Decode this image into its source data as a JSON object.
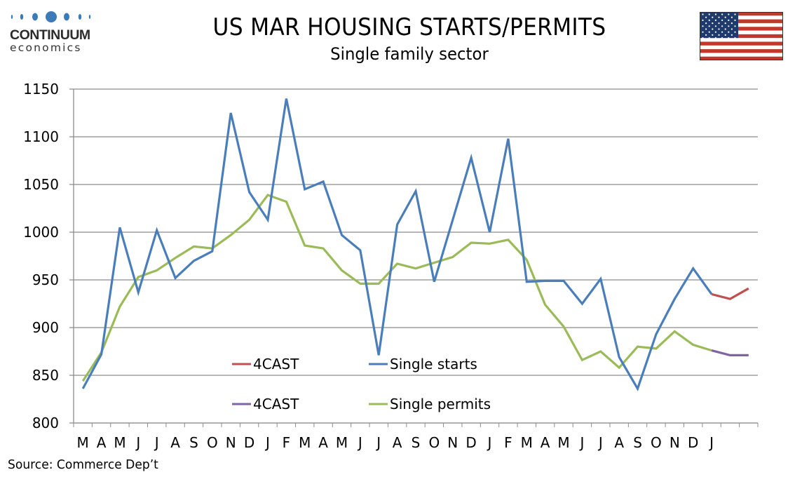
{
  "logo": {
    "name": "CONTINUUM",
    "sub": "economics",
    "color": "#3d7ab8"
  },
  "header": {
    "title": "US MAR HOUSING STARTS/PERMITS",
    "subtitle": "Single family sector"
  },
  "flag": {
    "name": "us-flag",
    "colors": {
      "blue": "#1f3b6e",
      "red": "#c0392b",
      "white": "#ffffff"
    }
  },
  "footer": {
    "source": "Source: Commerce Dep’t"
  },
  "chart_data": {
    "type": "line",
    "title": "US MAR HOUSING STARTS/PERMITS",
    "subtitle": "Single family sector",
    "xlabel": "",
    "ylabel": "",
    "ylim": [
      800,
      1150
    ],
    "yticks": [
      800,
      850,
      900,
      950,
      1000,
      1050,
      1100,
      1150
    ],
    "grid": true,
    "categories": [
      "M",
      "A",
      "M",
      "J",
      "J",
      "A",
      "S",
      "O",
      "N",
      "D",
      "J",
      "F",
      "M",
      "A",
      "M",
      "J",
      "J",
      "A",
      "S",
      "O",
      "N",
      "D",
      "J",
      "F",
      "M",
      "A",
      "M",
      "J",
      "J",
      "A",
      "S",
      "O",
      "N",
      "D",
      "J",
      "",
      ""
    ],
    "legend": {
      "placement": "bottom-center-inside",
      "entries": [
        {
          "label": "4CAST",
          "color": "#c0504d"
        },
        {
          "label": "Single starts",
          "color": "#4a7ebb"
        },
        {
          "label": "4CAST",
          "color": "#8064a2"
        },
        {
          "label": "Single permits",
          "color": "#9bbb59"
        }
      ]
    },
    "series": [
      {
        "name": "Single starts",
        "color": "#4a7ebb",
        "values": [
          836,
          872,
          1005,
          937,
          1002,
          952,
          970,
          980,
          1125,
          1042,
          1013,
          1140,
          1045,
          1053,
          997,
          981,
          871,
          1008,
          1043,
          948,
          1013,
          1078,
          1000,
          1098,
          948,
          949,
          949,
          925,
          951,
          869,
          836,
          893,
          930,
          962,
          935,
          null,
          null
        ]
      },
      {
        "name": "4CAST (starts)",
        "color": "#c0504d",
        "values": [
          null,
          null,
          null,
          null,
          null,
          null,
          null,
          null,
          null,
          null,
          null,
          null,
          null,
          null,
          null,
          null,
          null,
          null,
          null,
          null,
          null,
          null,
          null,
          null,
          null,
          null,
          null,
          null,
          null,
          null,
          null,
          null,
          null,
          null,
          935,
          930,
          941
        ]
      },
      {
        "name": "Single permits",
        "color": "#9bbb59",
        "values": [
          844,
          874,
          922,
          953,
          960,
          973,
          985,
          983,
          997,
          1013,
          1039,
          1032,
          986,
          983,
          960,
          946,
          946,
          967,
          962,
          968,
          974,
          989,
          988,
          992,
          971,
          924,
          901,
          866,
          875,
          858,
          880,
          878,
          896,
          882,
          876,
          null,
          null
        ]
      },
      {
        "name": "4CAST (permits)",
        "color": "#8064a2",
        "values": [
          null,
          null,
          null,
          null,
          null,
          null,
          null,
          null,
          null,
          null,
          null,
          null,
          null,
          null,
          null,
          null,
          null,
          null,
          null,
          null,
          null,
          null,
          null,
          null,
          null,
          null,
          null,
          null,
          null,
          null,
          null,
          null,
          null,
          null,
          876,
          871,
          871
        ]
      }
    ]
  }
}
